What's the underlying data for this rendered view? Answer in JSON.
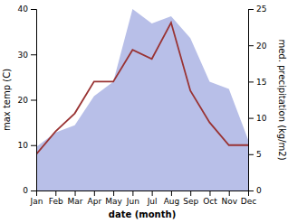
{
  "chart_data": {
    "type": "line",
    "xlabel": "date (month)",
    "ylabel": "max temp (C)",
    "y2label": "med. precipitation (kg/m2)",
    "categories": [
      "Jan",
      "Feb",
      "Mar",
      "Apr",
      "May",
      "Jun",
      "Jul",
      "Aug",
      "Sep",
      "Oct",
      "Nov",
      "Dec"
    ],
    "series": [
      {
        "type": "area",
        "axis": "y2",
        "color": "#b8bfe8",
        "values": [
          6,
          8,
          9,
          13,
          15,
          25,
          23,
          24,
          21,
          15,
          14,
          7
        ]
      },
      {
        "type": "line",
        "color": "#993333",
        "values": [
          8,
          13,
          17,
          24,
          24,
          31,
          29,
          37,
          22,
          15,
          10,
          10
        ]
      }
    ],
    "ylim": [
      0,
      40
    ],
    "yticks": [
      0,
      10,
      20,
      30,
      40
    ],
    "y2lim": [
      0,
      25
    ],
    "y2ticks": [
      0,
      5,
      10,
      15,
      20,
      25
    ]
  }
}
